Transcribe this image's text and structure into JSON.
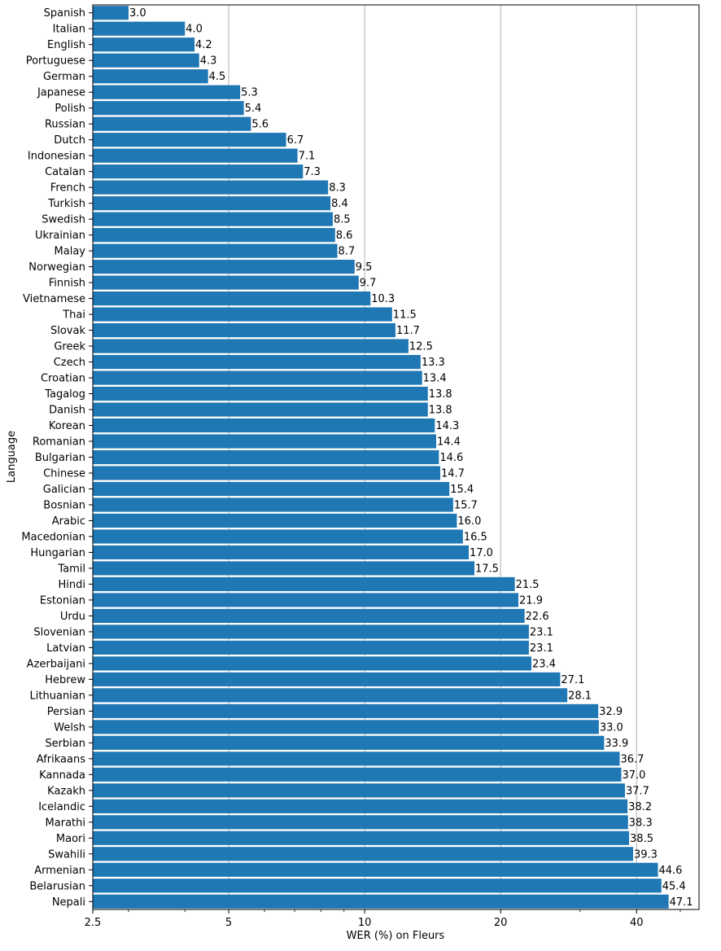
{
  "chart_data": {
    "type": "bar",
    "orientation": "horizontal",
    "title": "",
    "xlabel": "WER (%) on Fleurs",
    "ylabel": "Language",
    "xscale": "log",
    "xlim": [
      2.5,
      55
    ],
    "xticks": [
      2.5,
      5,
      10,
      20,
      40
    ],
    "xtick_labels": [
      "2.5",
      "5",
      "10",
      "20",
      "40"
    ],
    "grid": "vertical gridlines at major x ticks",
    "bar_color": "#1f77b4",
    "categories": [
      "Spanish",
      "Italian",
      "English",
      "Portuguese",
      "German",
      "Japanese",
      "Polish",
      "Russian",
      "Dutch",
      "Indonesian",
      "Catalan",
      "French",
      "Turkish",
      "Swedish",
      "Ukrainian",
      "Malay",
      "Norwegian",
      "Finnish",
      "Vietnamese",
      "Thai",
      "Slovak",
      "Greek",
      "Czech",
      "Croatian",
      "Tagalog",
      "Danish",
      "Korean",
      "Romanian",
      "Bulgarian",
      "Chinese",
      "Galician",
      "Bosnian",
      "Arabic",
      "Macedonian",
      "Hungarian",
      "Tamil",
      "Hindi",
      "Estonian",
      "Urdu",
      "Slovenian",
      "Latvian",
      "Azerbaijani",
      "Hebrew",
      "Lithuanian",
      "Persian",
      "Welsh",
      "Serbian",
      "Afrikaans",
      "Kannada",
      "Kazakh",
      "Icelandic",
      "Marathi",
      "Maori",
      "Swahili",
      "Armenian",
      "Belarusian",
      "Nepali"
    ],
    "values": [
      3.0,
      4.0,
      4.2,
      4.3,
      4.5,
      5.3,
      5.4,
      5.6,
      6.7,
      7.1,
      7.3,
      8.3,
      8.4,
      8.5,
      8.6,
      8.7,
      9.5,
      9.7,
      10.3,
      11.5,
      11.7,
      12.5,
      13.3,
      13.4,
      13.8,
      13.8,
      14.3,
      14.4,
      14.6,
      14.7,
      15.4,
      15.7,
      16.0,
      16.5,
      17.0,
      17.5,
      21.5,
      21.9,
      22.6,
      23.1,
      23.1,
      23.4,
      27.1,
      28.1,
      32.9,
      33.0,
      33.9,
      36.7,
      37.0,
      37.7,
      38.2,
      38.3,
      38.5,
      39.3,
      44.6,
      45.4,
      47.1
    ],
    "value_labels": [
      "3.0",
      "4.0",
      "4.2",
      "4.3",
      "4.5",
      "5.3",
      "5.4",
      "5.6",
      "6.7",
      "7.1",
      "7.3",
      "8.3",
      "8.4",
      "8.5",
      "8.6",
      "8.7",
      "9.5",
      "9.7",
      "10.3",
      "11.5",
      "11.7",
      "12.5",
      "13.3",
      "13.4",
      "13.8",
      "13.8",
      "14.3",
      "14.4",
      "14.6",
      "14.7",
      "15.4",
      "15.7",
      "16.0",
      "16.5",
      "17.0",
      "17.5",
      "21.5",
      "21.9",
      "22.6",
      "23.1",
      "23.1",
      "23.4",
      "27.1",
      "28.1",
      "32.9",
      "33.0",
      "33.9",
      "36.7",
      "37.0",
      "37.7",
      "38.2",
      "38.3",
      "38.5",
      "39.3",
      "44.6",
      "45.4",
      "47.1"
    ]
  }
}
